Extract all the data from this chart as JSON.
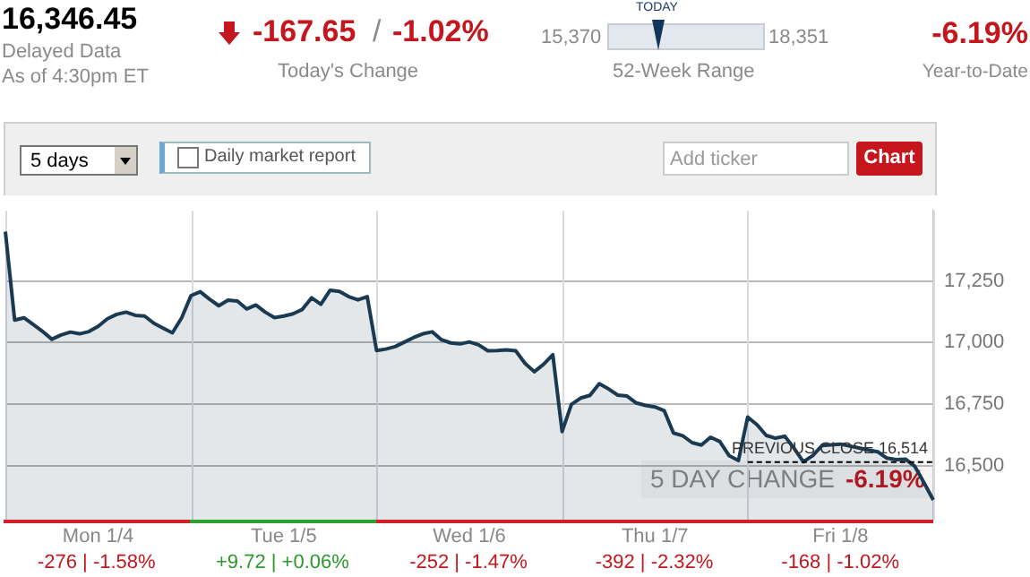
{
  "chart_data": {
    "type": "area",
    "categories": [
      null,
      null,
      null,
      null,
      null,
      null,
      null,
      null,
      null,
      null,
      "Mon 1/4",
      null,
      null,
      null,
      null,
      null,
      null,
      null,
      null,
      null,
      null,
      null,
      null,
      null,
      null,
      null,
      null,
      null,
      null,
      null,
      "Tue 1/5",
      null,
      null,
      null,
      null,
      null,
      null,
      null,
      null,
      null,
      null,
      null,
      null,
      null,
      null,
      null,
      null,
      null,
      null,
      null,
      "Wed 1/6",
      null,
      null,
      null,
      null,
      null,
      null,
      null,
      null,
      null,
      null,
      null,
      null,
      null,
      null,
      null,
      null,
      null,
      null,
      null,
      "Thu 1/7",
      null,
      null,
      null,
      null,
      null,
      null,
      null,
      null,
      null,
      null,
      null,
      null,
      null,
      null,
      null,
      null,
      null,
      null,
      null,
      "Fri 1/8",
      null,
      null,
      null,
      null,
      null,
      null,
      null,
      null,
      null,
      null
    ],
    "ylim": [
      16280,
      17535
    ],
    "yticks": [
      {
        "value": 16500,
        "label": "16,500"
      },
      {
        "value": 16750,
        "label": "16,750"
      },
      {
        "value": 17000,
        "label": "17,000"
      },
      {
        "value": 17250,
        "label": "17,250"
      }
    ],
    "grid": true,
    "legend": false,
    "marker": "none",
    "series": [
      {
        "color": "#1a3a52",
        "values": [
          17450,
          17091,
          17100,
          17073,
          17045,
          17013,
          17030,
          17042,
          17035,
          17044,
          17065,
          17096,
          17114,
          17123,
          17110,
          17107,
          17078,
          17058,
          17039,
          17100,
          17190,
          17206,
          17176,
          17149,
          17172,
          17168,
          17136,
          17152,
          17123,
          17101,
          17107,
          17116,
          17134,
          17181,
          17155,
          17212,
          17207,
          17186,
          17173,
          17186,
          16967,
          16973,
          16983,
          17001,
          17020,
          17035,
          17043,
          17011,
          16998,
          16994,
          17002,
          16990,
          16966,
          16967,
          16970,
          16966,
          16915,
          16881,
          16911,
          16950,
          16638,
          16748,
          16774,
          16785,
          16832,
          16811,
          16786,
          16782,
          16754,
          16744,
          16738,
          16723,
          16632,
          16621,
          16593,
          16583,
          16615,
          16597,
          16540,
          16520,
          16697,
          16666,
          16622,
          16611,
          16619,
          16570,
          16515,
          16540,
          16581,
          16584,
          16587,
          16579,
          16571,
          16563,
          16556,
          16530,
          16524,
          16526,
          16497,
          16430,
          16360
        ]
      }
    ],
    "ref_lines": [
      {
        "axis": "y",
        "value": 16514,
        "label": "PREVIOUS CLOSE 16,514",
        "line_style": "dashed",
        "color": "#000000"
      }
    ],
    "annotations": [
      "16,346.45",
      "Delayed Data",
      "As of 4:30pm ET",
      "-167.65",
      "/",
      "-1.02%",
      "Today's Change",
      "15,370",
      "TODAY",
      "18,351",
      "52-Week Range",
      "-6.19%",
      "Year-to-Date",
      "5 days",
      "Daily market report",
      "Add ticker",
      "Chart",
      "5 DAY CHANGE",
      "-6.19%",
      "-276 | -1.58%",
      "+9.72 | +0.06%",
      "-252 | -1.47%",
      "-392 | -2.32%",
      "-168 | -1.02%"
    ]
  }
}
